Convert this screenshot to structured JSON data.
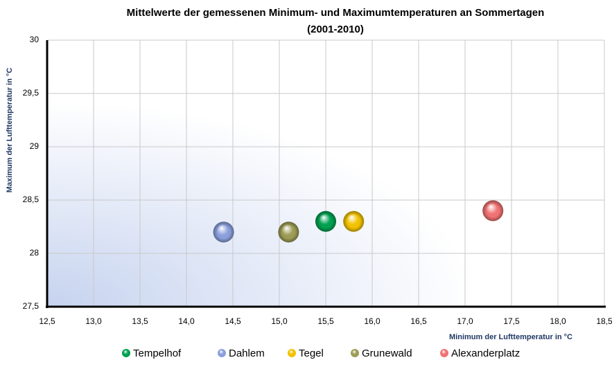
{
  "chart_data": {
    "type": "scatter",
    "title": [
      "Mittelwerte der gemessenen  Minimum- und Maximumtemperaturen an Sommertagen",
      "(2001-2010)"
    ],
    "x_label": "Minimum der Lufttemperatur in °C",
    "y_label": "Maximum der Lufttemperatur in °C",
    "xlim": [
      12.5,
      18.5
    ],
    "xticks": [
      {
        "value": 12.5,
        "label": "12,5"
      },
      {
        "value": 13,
        "label": "13,0"
      },
      {
        "value": 13.5,
        "label": "13,5"
      },
      {
        "value": 14,
        "label": "14,0"
      },
      {
        "value": 14.5,
        "label": "14,5"
      },
      {
        "value": 15,
        "label": "15,0"
      },
      {
        "value": 15.5,
        "label": "15,5"
      },
      {
        "value": 16,
        "label": "16,0"
      },
      {
        "value": 16.5,
        "label": "16,5"
      },
      {
        "value": 17,
        "label": "17,0"
      },
      {
        "value": 17.5,
        "label": "17,5"
      },
      {
        "value": 18,
        "label": "18,0"
      },
      {
        "value": 18.5,
        "label": "18,5"
      }
    ],
    "ylim": [
      27.5,
      30
    ],
    "yticks": [
      {
        "value": 27.5,
        "label": "27,5"
      },
      28,
      {
        "value": 28.5,
        "label": "28,5"
      },
      29,
      {
        "value": 29.5,
        "label": "29,5"
      },
      30
    ],
    "grid": true,
    "legend": "bottom",
    "series": [
      {
        "name": "Tempelhof",
        "color": "#00a050",
        "x": [
          15.5
        ],
        "values": [
          28.3
        ]
      },
      {
        "name": "Dahlem",
        "color": "#8a9fdc",
        "x": [
          14.4
        ],
        "values": [
          28.2
        ]
      },
      {
        "name": "Tegel",
        "color": "#f2c200",
        "x": [
          15.8
        ],
        "values": [
          28.3
        ]
      },
      {
        "name": "Grunewald",
        "color": "#9c9c55",
        "x": [
          15.1
        ],
        "values": [
          28.2
        ]
      },
      {
        "name": "Alexanderplatz",
        "color": "#f07272",
        "x": [
          17.3
        ],
        "values": [
          28.4
        ]
      }
    ]
  }
}
